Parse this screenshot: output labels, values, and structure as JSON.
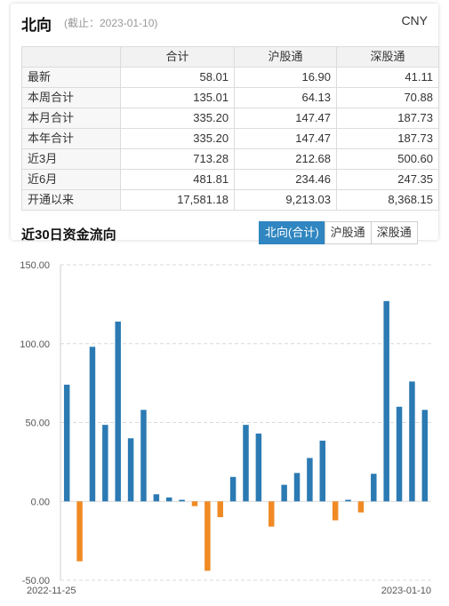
{
  "header": {
    "title": "北向",
    "as_of": "(截止：2023-01-10)",
    "currency": "CNY"
  },
  "table": {
    "columns": [
      "",
      "合计",
      "沪股通",
      "深股通"
    ],
    "rows": [
      {
        "label": "最新",
        "values": [
          "58.01",
          "16.90",
          "41.11"
        ]
      },
      {
        "label": "本周合计",
        "values": [
          "135.01",
          "64.13",
          "70.88"
        ]
      },
      {
        "label": "本月合计",
        "values": [
          "335.20",
          "147.47",
          "187.73"
        ]
      },
      {
        "label": "本年合计",
        "values": [
          "335.20",
          "147.47",
          "187.73"
        ]
      },
      {
        "label": "近3月",
        "values": [
          "713.28",
          "212.68",
          "500.60"
        ]
      },
      {
        "label": "近6月",
        "values": [
          "481.81",
          "234.46",
          "247.35"
        ]
      },
      {
        "label": "开通以来",
        "values": [
          "17,581.18",
          "9,213.03",
          "8,368.15"
        ]
      }
    ]
  },
  "section": {
    "title": "近30日资金流向",
    "tabs": [
      "北向(合计)",
      "沪股通",
      "深股通"
    ],
    "active_tab": 0
  },
  "colors": {
    "positive": "#2b7ab3",
    "negative": "#f08a24",
    "active_tab": "#2f86c0"
  },
  "chart_data": {
    "type": "bar",
    "ylim": [
      -50,
      150
    ],
    "y_ticks": [
      "-50.00",
      "0.00",
      "50.00",
      "100.00",
      "150.00"
    ],
    "x_start_label": "2022-11-25",
    "x_end_label": "2023-01-10",
    "grid": "horizontal dashed",
    "values": [
      74,
      -38,
      98,
      48.5,
      114,
      40,
      58,
      4.5,
      2.5,
      1,
      -3,
      -44,
      -10,
      15.5,
      48.5,
      43,
      -16,
      10.5,
      18,
      27.5,
      38.5,
      -12,
      1,
      -7,
      17.5,
      127,
      60,
      76,
      58
    ]
  }
}
